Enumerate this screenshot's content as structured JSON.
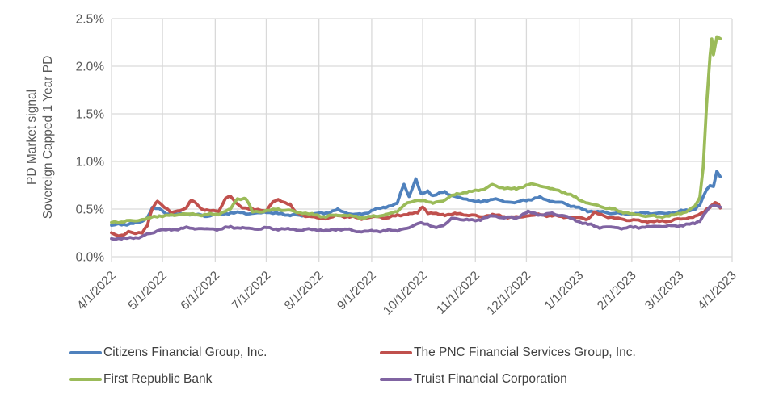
{
  "figure": {
    "background": "#FFFFFF",
    "grid_color": "#D9D9D9",
    "axis_text_color": "#595959",
    "legend_text_color": "#404040"
  },
  "chart_data": {
    "type": "line",
    "title": "",
    "ylabel_line1": "PD Market signal",
    "ylabel_line2": "Sovereign Capped 1 Year PD",
    "value_format": "percent",
    "ylim": [
      0,
      2.5
    ],
    "y_ticks": [
      {
        "value": 0.0,
        "label": "0.0%"
      },
      {
        "value": 0.5,
        "label": "0.5%"
      },
      {
        "value": 1.0,
        "label": "1.0%"
      },
      {
        "value": 1.5,
        "label": "1.5%"
      },
      {
        "value": 2.0,
        "label": "2.0%"
      },
      {
        "value": 2.5,
        "label": "2.5%"
      }
    ],
    "x_total_days": 365,
    "x_ticks": [
      {
        "day": 0,
        "label": "4/1/2022"
      },
      {
        "day": 30,
        "label": "5/1/2022"
      },
      {
        "day": 61,
        "label": "6/1/2022"
      },
      {
        "day": 91,
        "label": "7/1/2022"
      },
      {
        "day": 122,
        "label": "8/1/2022"
      },
      {
        "day": 153,
        "label": "9/1/2022"
      },
      {
        "day": 183,
        "label": "10/1/2022"
      },
      {
        "day": 214,
        "label": "11/1/2022"
      },
      {
        "day": 244,
        "label": "12/1/2022"
      },
      {
        "day": 275,
        "label": "1/1/2023"
      },
      {
        "day": 306,
        "label": "2/1/2023"
      },
      {
        "day": 334,
        "label": "3/1/2023"
      },
      {
        "day": 365,
        "label": "4/1/2023"
      }
    ],
    "grid": true,
    "legend_position": "bottom",
    "series": [
      {
        "name": "Citizens Financial Group, Inc.",
        "color": "#4F81BD",
        "points": [
          [
            0,
            0.33
          ],
          [
            7,
            0.34
          ],
          [
            14,
            0.35
          ],
          [
            18,
            0.37
          ],
          [
            21,
            0.41
          ],
          [
            24,
            0.51
          ],
          [
            28,
            0.5
          ],
          [
            32,
            0.46
          ],
          [
            35,
            0.44
          ],
          [
            42,
            0.45
          ],
          [
            49,
            0.44
          ],
          [
            56,
            0.43
          ],
          [
            63,
            0.44
          ],
          [
            70,
            0.46
          ],
          [
            77,
            0.46
          ],
          [
            84,
            0.45
          ],
          [
            91,
            0.47
          ],
          [
            98,
            0.45
          ],
          [
            105,
            0.44
          ],
          [
            112,
            0.43
          ],
          [
            119,
            0.45
          ],
          [
            126,
            0.46
          ],
          [
            133,
            0.49
          ],
          [
            140,
            0.45
          ],
          [
            147,
            0.44
          ],
          [
            154,
            0.49
          ],
          [
            161,
            0.52
          ],
          [
            168,
            0.56
          ],
          [
            172,
            0.76
          ],
          [
            175,
            0.64
          ],
          [
            179,
            0.81
          ],
          [
            182,
            0.66
          ],
          [
            186,
            0.69
          ],
          [
            189,
            0.64
          ],
          [
            196,
            0.68
          ],
          [
            203,
            0.62
          ],
          [
            210,
            0.6
          ],
          [
            217,
            0.57
          ],
          [
            224,
            0.61
          ],
          [
            231,
            0.58
          ],
          [
            238,
            0.57
          ],
          [
            245,
            0.6
          ],
          [
            252,
            0.62
          ],
          [
            259,
            0.58
          ],
          [
            266,
            0.56
          ],
          [
            273,
            0.52
          ],
          [
            280,
            0.48
          ],
          [
            287,
            0.47
          ],
          [
            294,
            0.46
          ],
          [
            301,
            0.45
          ],
          [
            308,
            0.45
          ],
          [
            315,
            0.46
          ],
          [
            322,
            0.45
          ],
          [
            329,
            0.46
          ],
          [
            336,
            0.48
          ],
          [
            343,
            0.5
          ],
          [
            346,
            0.54
          ],
          [
            348,
            0.62
          ],
          [
            350,
            0.71
          ],
          [
            352,
            0.75
          ],
          [
            354,
            0.74
          ],
          [
            356,
            0.9
          ],
          [
            358,
            0.84
          ]
        ]
      },
      {
        "name": "The PNC Financial Services Group, Inc.",
        "color": "#C0504D",
        "points": [
          [
            0,
            0.24
          ],
          [
            4,
            0.22
          ],
          [
            7,
            0.23
          ],
          [
            10,
            0.26
          ],
          [
            14,
            0.24
          ],
          [
            18,
            0.26
          ],
          [
            21,
            0.33
          ],
          [
            24,
            0.5
          ],
          [
            27,
            0.58
          ],
          [
            31,
            0.53
          ],
          [
            35,
            0.46
          ],
          [
            40,
            0.48
          ],
          [
            44,
            0.52
          ],
          [
            47,
            0.59
          ],
          [
            50,
            0.55
          ],
          [
            53,
            0.5
          ],
          [
            56,
            0.49
          ],
          [
            63,
            0.47
          ],
          [
            67,
            0.62
          ],
          [
            70,
            0.63
          ],
          [
            73,
            0.56
          ],
          [
            77,
            0.52
          ],
          [
            84,
            0.49
          ],
          [
            91,
            0.49
          ],
          [
            95,
            0.57
          ],
          [
            98,
            0.6
          ],
          [
            102,
            0.57
          ],
          [
            105,
            0.55
          ],
          [
            108,
            0.47
          ],
          [
            112,
            0.44
          ],
          [
            119,
            0.41
          ],
          [
            126,
            0.4
          ],
          [
            133,
            0.43
          ],
          [
            140,
            0.42
          ],
          [
            147,
            0.4
          ],
          [
            154,
            0.42
          ],
          [
            161,
            0.41
          ],
          [
            168,
            0.43
          ],
          [
            175,
            0.45
          ],
          [
            180,
            0.46
          ],
          [
            183,
            0.53
          ],
          [
            186,
            0.46
          ],
          [
            189,
            0.45
          ],
          [
            196,
            0.44
          ],
          [
            203,
            0.45
          ],
          [
            210,
            0.44
          ],
          [
            217,
            0.42
          ],
          [
            224,
            0.44
          ],
          [
            231,
            0.42
          ],
          [
            238,
            0.41
          ],
          [
            245,
            0.43
          ],
          [
            252,
            0.44
          ],
          [
            259,
            0.43
          ],
          [
            266,
            0.42
          ],
          [
            273,
            0.41
          ],
          [
            280,
            0.4
          ],
          [
            284,
            0.46
          ],
          [
            288,
            0.44
          ],
          [
            294,
            0.41
          ],
          [
            301,
            0.39
          ],
          [
            308,
            0.38
          ],
          [
            315,
            0.37
          ],
          [
            322,
            0.37
          ],
          [
            329,
            0.38
          ],
          [
            336,
            0.4
          ],
          [
            343,
            0.42
          ],
          [
            348,
            0.46
          ],
          [
            350,
            0.5
          ],
          [
            353,
            0.54
          ],
          [
            355,
            0.57
          ],
          [
            357,
            0.54
          ],
          [
            358,
            0.51
          ]
        ]
      },
      {
        "name": "First Republic Bank",
        "color": "#9BBB59",
        "points": [
          [
            0,
            0.36
          ],
          [
            7,
            0.37
          ],
          [
            14,
            0.38
          ],
          [
            21,
            0.4
          ],
          [
            28,
            0.43
          ],
          [
            35,
            0.43
          ],
          [
            42,
            0.45
          ],
          [
            49,
            0.44
          ],
          [
            56,
            0.44
          ],
          [
            63,
            0.45
          ],
          [
            70,
            0.5
          ],
          [
            74,
            0.61
          ],
          [
            79,
            0.61
          ],
          [
            83,
            0.47
          ],
          [
            91,
            0.48
          ],
          [
            98,
            0.5
          ],
          [
            105,
            0.48
          ],
          [
            112,
            0.46
          ],
          [
            119,
            0.44
          ],
          [
            126,
            0.42
          ],
          [
            133,
            0.44
          ],
          [
            140,
            0.43
          ],
          [
            147,
            0.41
          ],
          [
            154,
            0.42
          ],
          [
            161,
            0.44
          ],
          [
            168,
            0.47
          ],
          [
            172,
            0.55
          ],
          [
            176,
            0.57
          ],
          [
            182,
            0.6
          ],
          [
            189,
            0.56
          ],
          [
            196,
            0.6
          ],
          [
            203,
            0.66
          ],
          [
            210,
            0.68
          ],
          [
            217,
            0.7
          ],
          [
            224,
            0.75
          ],
          [
            231,
            0.72
          ],
          [
            238,
            0.71
          ],
          [
            245,
            0.76
          ],
          [
            252,
            0.75
          ],
          [
            259,
            0.71
          ],
          [
            266,
            0.68
          ],
          [
            273,
            0.62
          ],
          [
            280,
            0.56
          ],
          [
            287,
            0.53
          ],
          [
            294,
            0.5
          ],
          [
            301,
            0.47
          ],
          [
            308,
            0.44
          ],
          [
            315,
            0.43
          ],
          [
            322,
            0.42
          ],
          [
            329,
            0.43
          ],
          [
            336,
            0.46
          ],
          [
            343,
            0.52
          ],
          [
            346,
            0.62
          ],
          [
            348,
            0.95
          ],
          [
            350,
            1.6
          ],
          [
            352,
            2.1
          ],
          [
            353,
            2.28
          ],
          [
            354,
            2.12
          ],
          [
            356,
            2.3
          ],
          [
            358,
            2.29
          ]
        ]
      },
      {
        "name": "Truist Financial Corporation",
        "color": "#8064A2",
        "points": [
          [
            0,
            0.19
          ],
          [
            7,
            0.19
          ],
          [
            14,
            0.2
          ],
          [
            18,
            0.21
          ],
          [
            21,
            0.23
          ],
          [
            28,
            0.28
          ],
          [
            35,
            0.28
          ],
          [
            42,
            0.3
          ],
          [
            49,
            0.3
          ],
          [
            56,
            0.29
          ],
          [
            63,
            0.29
          ],
          [
            70,
            0.31
          ],
          [
            77,
            0.3
          ],
          [
            84,
            0.29
          ],
          [
            91,
            0.3
          ],
          [
            98,
            0.29
          ],
          [
            105,
            0.29
          ],
          [
            112,
            0.28
          ],
          [
            119,
            0.29
          ],
          [
            126,
            0.27
          ],
          [
            133,
            0.29
          ],
          [
            140,
            0.28
          ],
          [
            147,
            0.26
          ],
          [
            154,
            0.27
          ],
          [
            161,
            0.27
          ],
          [
            168,
            0.28
          ],
          [
            175,
            0.3
          ],
          [
            180,
            0.35
          ],
          [
            182,
            0.36
          ],
          [
            189,
            0.31
          ],
          [
            196,
            0.33
          ],
          [
            200,
            0.4
          ],
          [
            203,
            0.4
          ],
          [
            210,
            0.38
          ],
          [
            217,
            0.39
          ],
          [
            224,
            0.43
          ],
          [
            231,
            0.41
          ],
          [
            238,
            0.41
          ],
          [
            245,
            0.47
          ],
          [
            252,
            0.44
          ],
          [
            259,
            0.45
          ],
          [
            266,
            0.43
          ],
          [
            273,
            0.38
          ],
          [
            280,
            0.34
          ],
          [
            287,
            0.31
          ],
          [
            294,
            0.31
          ],
          [
            301,
            0.3
          ],
          [
            308,
            0.31
          ],
          [
            315,
            0.31
          ],
          [
            322,
            0.32
          ],
          [
            329,
            0.32
          ],
          [
            336,
            0.33
          ],
          [
            343,
            0.35
          ],
          [
            346,
            0.38
          ],
          [
            348,
            0.43
          ],
          [
            350,
            0.48
          ],
          [
            352,
            0.52
          ],
          [
            354,
            0.53
          ],
          [
            356,
            0.54
          ],
          [
            358,
            0.52
          ]
        ]
      }
    ]
  }
}
